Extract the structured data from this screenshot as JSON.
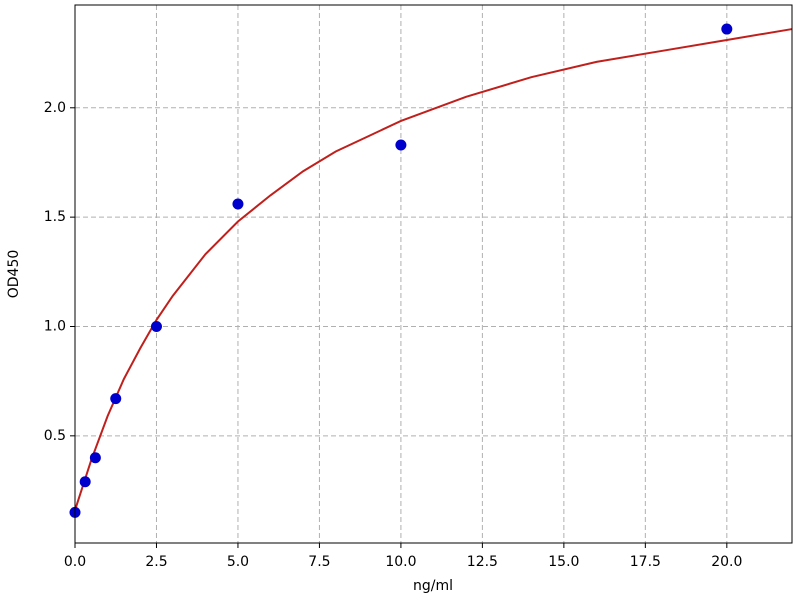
{
  "chart_data": {
    "type": "scatter",
    "xlabel": "ng/ml",
    "ylabel": "OD450",
    "xlim": [
      0,
      22
    ],
    "ylim": [
      0.01,
      2.47
    ],
    "xticks": [
      {
        "value": 0,
        "label": "0.0"
      },
      2.5,
      {
        "value": 5,
        "label": "5.0"
      },
      7.5,
      {
        "value": 10,
        "label": "10.0"
      },
      12.5,
      {
        "value": 15,
        "label": "15.0"
      },
      17.5,
      {
        "value": 20,
        "label": "20.0"
      }
    ],
    "yticks": [
      0.5,
      {
        "value": 1,
        "label": "1.0"
      },
      1.5,
      {
        "value": 2,
        "label": "2.0"
      }
    ],
    "grid": true,
    "series": [
      {
        "type": "line",
        "color": "#c0201c",
        "x": [
          0,
          0.5,
          1,
          1.5,
          2,
          2.5,
          3,
          4,
          5,
          6,
          7,
          8,
          9,
          10,
          12,
          14,
          16,
          18,
          20,
          22
        ],
        "values": [
          0.16,
          0.39,
          0.59,
          0.76,
          0.9,
          1.03,
          1.14,
          1.33,
          1.48,
          1.6,
          1.71,
          1.8,
          1.87,
          1.94,
          2.05,
          2.14,
          2.21,
          2.26,
          2.31,
          2.36
        ]
      },
      {
        "type": "scatter",
        "color": "#0000cc",
        "x": [
          0,
          0.3125,
          0.625,
          1.25,
          2.5,
          5,
          10,
          20
        ],
        "values": [
          0.15,
          0.29,
          0.4,
          0.67,
          1.0,
          1.56,
          1.83,
          2.36
        ]
      }
    ]
  }
}
